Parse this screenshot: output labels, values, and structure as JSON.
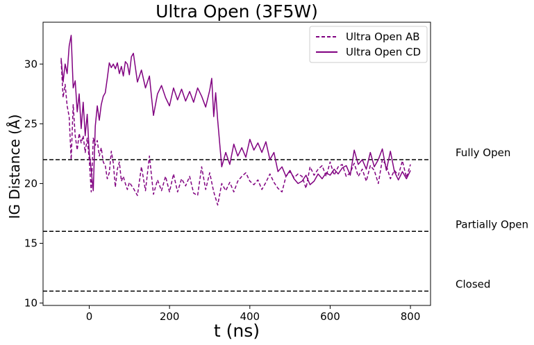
{
  "chart_data": {
    "type": "line",
    "title": "Ultra Open (3F5W)",
    "xlabel": "t (ns)",
    "ylabel": "IG Distance (Å)",
    "xlim": [
      -115,
      850
    ],
    "ylim": [
      9.8,
      33.5
    ],
    "xticks": [
      0,
      200,
      400,
      600,
      800
    ],
    "yticks": [
      10,
      15,
      20,
      25,
      30
    ],
    "grid": false,
    "legend_position": "top-right",
    "reference_lines": [
      {
        "label": "Fully Open",
        "y": 22.0
      },
      {
        "label": "Partially Open",
        "y": 16.0
      },
      {
        "label": "Closed",
        "y": 11.0
      }
    ],
    "series": [
      {
        "name": "Ultra Open AB",
        "style": "dashed",
        "color": "#800080",
        "x": [
          -70,
          -65,
          -60,
          -55,
          -50,
          -45,
          -40,
          -35,
          -30,
          -25,
          -20,
          -15,
          -10,
          -5,
          0,
          5,
          10,
          15,
          20,
          25,
          30,
          35,
          40,
          45,
          50,
          55,
          60,
          65,
          70,
          75,
          80,
          85,
          90,
          95,
          100,
          110,
          120,
          130,
          140,
          150,
          160,
          170,
          180,
          190,
          200,
          210,
          220,
          230,
          240,
          250,
          260,
          270,
          280,
          290,
          300,
          310,
          320,
          330,
          340,
          350,
          360,
          370,
          380,
          390,
          400,
          410,
          420,
          430,
          440,
          450,
          460,
          470,
          480,
          490,
          500,
          510,
          520,
          530,
          540,
          550,
          560,
          570,
          580,
          590,
          600,
          610,
          620,
          630,
          640,
          650,
          660,
          670,
          680,
          690,
          700,
          710,
          720,
          730,
          740,
          750,
          760,
          770,
          780,
          790,
          800
        ],
        "y": [
          30.3,
          27.2,
          28.3,
          26.5,
          25.6,
          22.0,
          26.6,
          24.0,
          22.8,
          24.2,
          23.4,
          24.0,
          22.6,
          23.8,
          22.0,
          19.3,
          23.8,
          23.2,
          23.6,
          22.3,
          23.0,
          21.8,
          21.5,
          20.4,
          20.9,
          22.7,
          21.7,
          19.7,
          21.2,
          21.8,
          20.2,
          20.6,
          20.0,
          19.5,
          20.1,
          19.6,
          19.0,
          21.4,
          19.4,
          22.3,
          19.1,
          20.3,
          19.4,
          20.6,
          19.3,
          20.8,
          19.3,
          20.4,
          19.8,
          20.6,
          19.2,
          19.0,
          21.4,
          19.5,
          20.9,
          19.3,
          18.2,
          20.0,
          19.4,
          20.1,
          19.3,
          20.2,
          20.6,
          20.9,
          20.2,
          19.9,
          20.3,
          19.5,
          20.1,
          20.8,
          20.1,
          19.6,
          19.3,
          20.6,
          21.0,
          20.5,
          20.8,
          20.6,
          19.6,
          21.4,
          20.7,
          21.2,
          21.5,
          20.6,
          21.8,
          20.7,
          21.4,
          21.6,
          20.6,
          20.9,
          21.7,
          20.6,
          21.2,
          20.2,
          21.5,
          21.1,
          20.0,
          22.0,
          21.5,
          20.4,
          21.1,
          20.7,
          21.9,
          20.5,
          21.6
        ]
      },
      {
        "name": "Ultra Open CD",
        "style": "solid",
        "color": "#800080",
        "x": [
          -70,
          -65,
          -60,
          -55,
          -50,
          -45,
          -40,
          -35,
          -30,
          -25,
          -20,
          -15,
          -10,
          -5,
          0,
          5,
          10,
          15,
          20,
          25,
          30,
          35,
          40,
          45,
          50,
          55,
          60,
          65,
          70,
          75,
          80,
          85,
          90,
          95,
          100,
          105,
          110,
          120,
          130,
          140,
          150,
          155,
          160,
          170,
          180,
          190,
          200,
          210,
          220,
          230,
          240,
          250,
          260,
          270,
          280,
          290,
          300,
          305,
          310,
          315,
          320,
          330,
          340,
          350,
          360,
          370,
          380,
          390,
          400,
          410,
          420,
          430,
          440,
          450,
          460,
          470,
          480,
          490,
          500,
          510,
          520,
          530,
          540,
          550,
          560,
          570,
          580,
          590,
          600,
          610,
          620,
          630,
          640,
          650,
          660,
          670,
          680,
          690,
          700,
          710,
          720,
          730,
          740,
          750,
          760,
          770,
          780,
          790,
          800
        ],
        "y": [
          30.5,
          28.5,
          30.0,
          29.2,
          31.5,
          32.4,
          28.0,
          28.6,
          26.0,
          27.5,
          24.6,
          26.8,
          24.0,
          25.8,
          22.6,
          21.1,
          19.4,
          24.8,
          26.5,
          25.3,
          26.6,
          27.3,
          27.6,
          28.8,
          30.1,
          29.7,
          30.0,
          29.6,
          30.1,
          29.2,
          29.8,
          29.0,
          30.2,
          30.0,
          29.1,
          30.6,
          30.9,
          28.5,
          29.5,
          28.0,
          29.0,
          27.3,
          25.7,
          27.5,
          28.2,
          27.2,
          26.5,
          28.0,
          27.0,
          27.9,
          26.9,
          27.7,
          26.8,
          28.0,
          27.3,
          26.4,
          27.8,
          28.8,
          25.6,
          27.6,
          25.3,
          21.4,
          22.6,
          21.6,
          23.3,
          22.3,
          23.0,
          22.2,
          23.7,
          22.8,
          23.4,
          22.6,
          23.5,
          22.0,
          22.6,
          21.0,
          21.4,
          20.6,
          21.1,
          20.4,
          20.0,
          20.2,
          20.7,
          19.9,
          20.2,
          20.8,
          20.4,
          20.9,
          20.7,
          21.2,
          20.8,
          21.3,
          21.5,
          20.7,
          22.8,
          21.6,
          22.0,
          21.2,
          22.6,
          21.4,
          22.0,
          22.9,
          21.1,
          22.7,
          21.0,
          20.3,
          21.0,
          20.4,
          21.1
        ]
      }
    ]
  }
}
